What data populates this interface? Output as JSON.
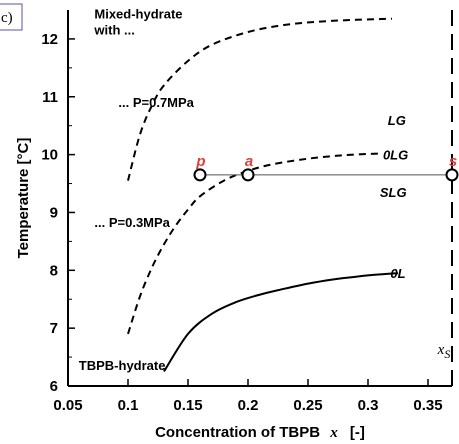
{
  "chart_data": {
    "type": "line",
    "panel_label": "c)",
    "xlabel_main": "Concentration of TBPB",
    "xlabel_var": "x",
    "xlabel_unit": "[-]",
    "ylabel": "Temperature [°C]",
    "xlim": [
      0.05,
      0.37
    ],
    "ylim": [
      6,
      12.5
    ],
    "x_ticks": [
      "0.05",
      "0.1",
      "0.15",
      "0.2",
      "0.25",
      "0.3",
      "0.35"
    ],
    "y_ticks": [
      "6",
      "7",
      "8",
      "9",
      "10",
      "11",
      "12"
    ],
    "grid": false,
    "series": [
      {
        "style": "dashed",
        "x": [
          0.1,
          0.11,
          0.12,
          0.13,
          0.15,
          0.17,
          0.2,
          0.23,
          0.26,
          0.29,
          0.32
        ],
        "y": [
          9.55,
          10.35,
          10.85,
          11.2,
          11.62,
          11.9,
          12.12,
          12.24,
          12.3,
          12.33,
          12.35
        ]
      },
      {
        "style": "dashed",
        "x": [
          0.1,
          0.11,
          0.12,
          0.13,
          0.14,
          0.15,
          0.16,
          0.18,
          0.2,
          0.22,
          0.25,
          0.28,
          0.31
        ],
        "y": [
          6.9,
          7.55,
          8.05,
          8.45,
          8.78,
          9.05,
          9.28,
          9.55,
          9.72,
          9.83,
          9.93,
          9.99,
          10.02
        ]
      },
      {
        "style": "solid",
        "x": [
          0.13,
          0.15,
          0.17,
          0.19,
          0.21,
          0.23,
          0.25,
          0.27,
          0.29,
          0.31,
          0.325
        ],
        "y": [
          6.25,
          6.9,
          7.25,
          7.45,
          7.58,
          7.68,
          7.77,
          7.84,
          7.89,
          7.93,
          7.95
        ]
      }
    ],
    "tie_line": {
      "y": 9.65,
      "x": [
        0.16,
        0.37
      ]
    },
    "points": [
      {
        "label": "p",
        "x": 0.16,
        "y": 9.65
      },
      {
        "label": "a",
        "x": 0.2,
        "y": 9.65
      },
      {
        "label": "s",
        "x": 0.37,
        "y": 9.65
      }
    ],
    "vertical_line": {
      "x": 0.37,
      "label": "x",
      "label_sub": "S"
    },
    "annotations": [
      {
        "text": "Mixed-hydrate",
        "x": 0.072,
        "y": 12.35
      },
      {
        "text": "with ...",
        "x": 0.072,
        "y": 12.08
      },
      {
        "text": "... P=0.7MPa",
        "x": 0.092,
        "y": 10.82
      },
      {
        "text": "... P=0.3MPa",
        "x": 0.072,
        "y": 8.75
      },
      {
        "text": "TBPB-hydrate",
        "x": 0.059,
        "y": 6.28
      }
    ],
    "region_labels": [
      {
        "text": "LG",
        "x": 0.324,
        "y": 10.6
      },
      {
        "text": "0LG",
        "x": 0.323,
        "y": 10.0
      },
      {
        "text": "SLG",
        "x": 0.321,
        "y": 9.35
      },
      {
        "text": "0L",
        "x": 0.325,
        "y": 7.95
      }
    ]
  }
}
